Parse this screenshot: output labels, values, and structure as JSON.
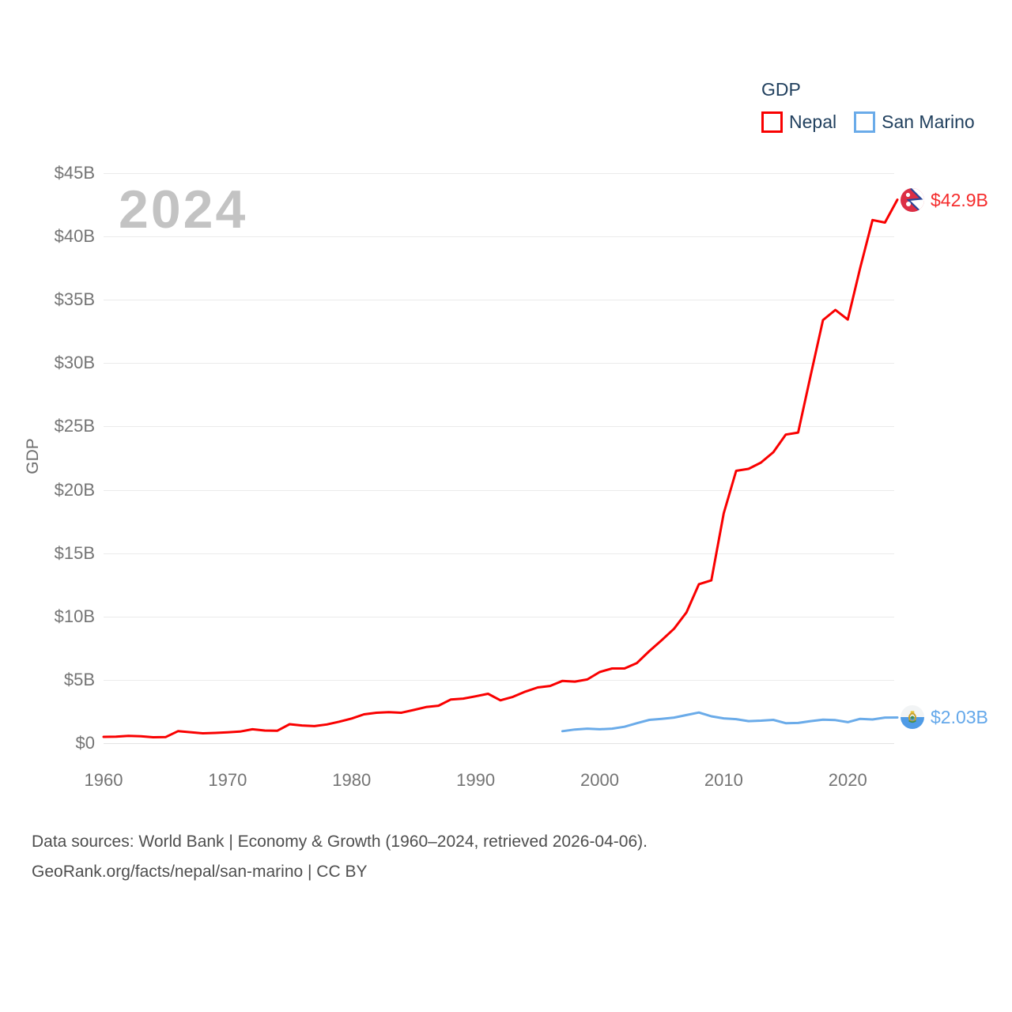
{
  "legend": {
    "title": "GDP",
    "items": [
      {
        "label": "Nepal",
        "color": "#f90000"
      },
      {
        "label": "San Marino",
        "color": "#6aabe9"
      }
    ]
  },
  "watermark": "2024",
  "y_axis_title": "GDP",
  "footer": {
    "line1": "Data sources: World Bank | Economy & Growth (1960–2024, retrieved 2026-04-06).",
    "line2": "GeoRank.org/facts/nepal/san-marino | CC BY"
  },
  "icons": [
    {
      "name": "nepal-flag-icon"
    },
    {
      "name": "san-marino-flag-icon"
    }
  ],
  "chart_data": {
    "type": "line",
    "title": "GDP",
    "ylabel": "GDP",
    "xlim": [
      1960,
      2024
    ],
    "ylim": [
      0,
      45
    ],
    "grid": "horizontal",
    "legend_position": "top-right",
    "ytick_values": [
      0,
      5,
      10,
      15,
      20,
      25,
      30,
      35,
      40,
      45
    ],
    "ytick_labels": [
      "$0",
      "$5B",
      "$10B",
      "$15B",
      "$20B",
      "$25B",
      "$30B",
      "$35B",
      "$40B",
      "$45B"
    ],
    "xtick_values": [
      1960,
      1970,
      1980,
      1990,
      2000,
      2010,
      2020
    ],
    "xtick_labels": [
      "1960",
      "1970",
      "1980",
      "1990",
      "2000",
      "2010",
      "2020"
    ],
    "x_step": 1,
    "series": [
      {
        "name": "Nepal",
        "color": "#f90000",
        "start_year": 1960,
        "end_year": 2024,
        "end_label": "$42.9B",
        "end_label_color": "#f52c2c",
        "values": [
          0.5,
          0.52,
          0.58,
          0.55,
          0.47,
          0.48,
          0.95,
          0.87,
          0.78,
          0.81,
          0.86,
          0.92,
          1.1,
          1.0,
          0.98,
          1.5,
          1.4,
          1.35,
          1.48,
          1.7,
          1.95,
          2.28,
          2.4,
          2.45,
          2.4,
          2.62,
          2.85,
          2.96,
          3.45,
          3.52,
          3.7,
          3.9,
          3.38,
          3.66,
          4.07,
          4.4,
          4.52,
          4.92,
          4.86,
          5.03,
          5.62,
          5.9,
          5.9,
          6.33,
          7.27,
          8.13,
          9.04,
          10.33,
          12.55,
          12.85,
          18.15,
          21.5,
          21.66,
          22.15,
          22.97,
          24.36,
          24.52,
          29.0,
          33.4,
          34.2,
          33.44,
          37.5,
          41.3,
          41.1,
          42.9
        ]
      },
      {
        "name": "San Marino",
        "color": "#6aabe9",
        "start_year": 1997,
        "end_year": 2024,
        "end_label": "$2.03B",
        "end_label_color": "#64a8ea",
        "values": [
          0.95,
          1.08,
          1.15,
          1.1,
          1.15,
          1.3,
          1.58,
          1.84,
          1.92,
          2.02,
          2.22,
          2.42,
          2.12,
          1.96,
          1.9,
          1.74,
          1.78,
          1.84,
          1.58,
          1.6,
          1.74,
          1.86,
          1.82,
          1.66,
          1.92,
          1.87,
          2.02,
          2.03
        ]
      }
    ]
  }
}
